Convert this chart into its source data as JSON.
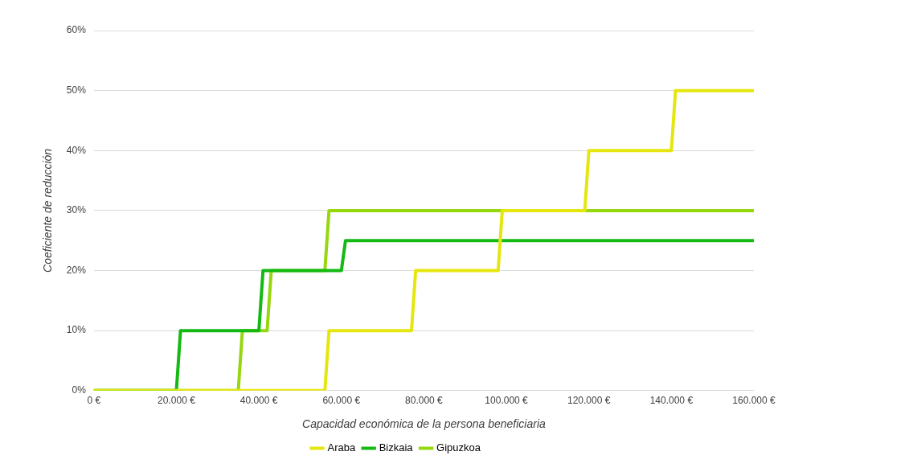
{
  "chart_data": {
    "type": "line",
    "xlabel": "Capacidad económica de la persona beneficiaria",
    "ylabel": "Coeficiente de reducción",
    "xlim": [
      0,
      160000
    ],
    "xticks": [
      {
        "value": 0,
        "label": "0 €"
      },
      {
        "value": 20000,
        "label": "20.000 €"
      },
      {
        "value": 40000,
        "label": "40.000 €"
      },
      {
        "value": 60000,
        "label": "60.000 €"
      },
      {
        "value": 80000,
        "label": "80.000 €"
      },
      {
        "value": 100000,
        "label": "100.000 €"
      },
      {
        "value": 120000,
        "label": "120.000 €"
      },
      {
        "value": 140000,
        "label": "140.000 €"
      },
      {
        "value": 160000,
        "label": "160.000 €"
      }
    ],
    "ylim": [
      0,
      60
    ],
    "yticks": [
      {
        "value": 0,
        "label": "0%"
      },
      {
        "value": 10,
        "label": "10%"
      },
      {
        "value": 20,
        "label": "20%"
      },
      {
        "value": 30,
        "label": "30%"
      },
      {
        "value": 40,
        "label": "40%"
      },
      {
        "value": 50,
        "label": "50%"
      },
      {
        "value": 60,
        "label": "60%"
      }
    ],
    "grid": "y",
    "legend": "bottom",
    "marker": "none",
    "line_style": "solid",
    "series": [
      {
        "name": "Araba",
        "color": "#e6e60f",
        "x": [
          0,
          56000,
          57000,
          77000,
          78000,
          98000,
          99000,
          119000,
          120000,
          140000,
          141000,
          160000
        ],
        "values": [
          0,
          0,
          10,
          10,
          20,
          20,
          30,
          30,
          40,
          40,
          50,
          50
        ]
      },
      {
        "name": "Bizkaia",
        "color": "#14b914",
        "x": [
          0,
          20000,
          21000,
          40000,
          41000,
          60000,
          61000,
          160000
        ],
        "values": [
          0,
          0,
          10,
          10,
          20,
          20,
          25,
          25
        ]
      },
      {
        "name": "Gipuzkoa",
        "color": "#96d70f",
        "x": [
          0,
          35000,
          36000,
          42000,
          43000,
          56000,
          57000,
          160000
        ],
        "values": [
          0,
          0,
          10,
          10,
          20,
          20,
          30,
          30
        ]
      }
    ]
  }
}
